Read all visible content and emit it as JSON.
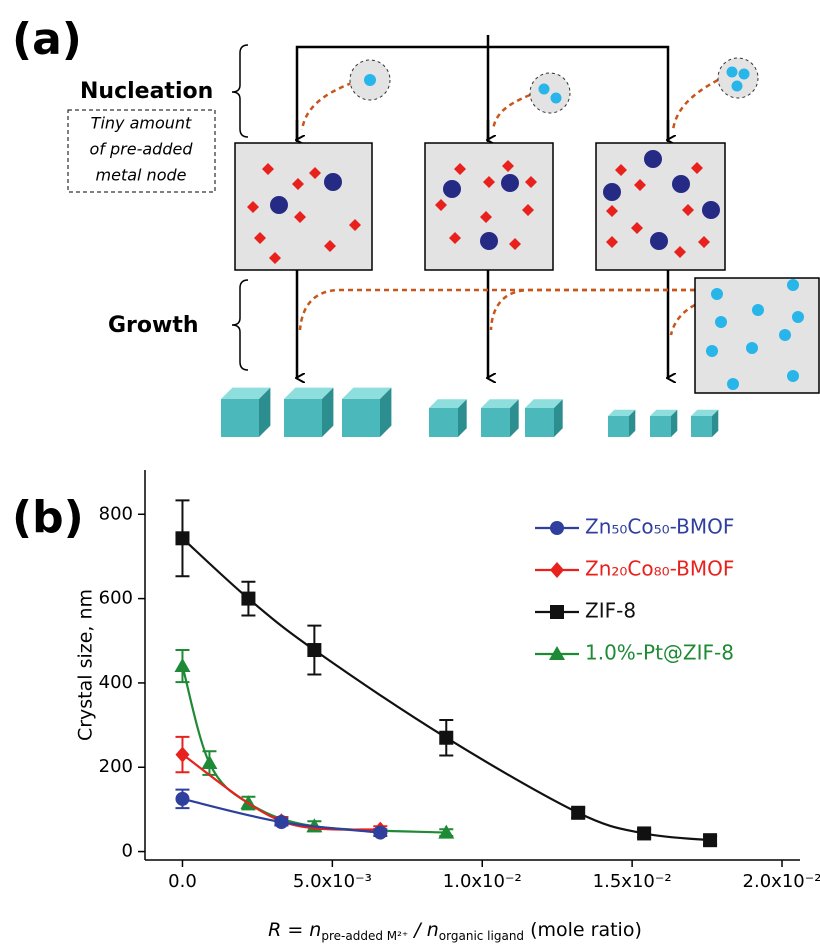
{
  "diagram": {
    "panel_label": "(a)",
    "stage_1": "Nucleation",
    "note": [
      "Tiny amount",
      "of pre-added",
      "metal node"
    ],
    "stage_2": "Growth"
  },
  "chart_data": {
    "type": "line",
    "panel_label": "(b)",
    "ylabel": "Crystal size, nm",
    "xlabel": [
      "R = n",
      "pre-added M²⁺",
      " / n",
      "organic ligand",
      " (mole ratio)"
    ],
    "xlim": [
      -0.00125,
      0.0206
    ],
    "ylim": [
      -20,
      905
    ],
    "xticks": [
      {
        "value": 0,
        "label": "0.0"
      },
      {
        "value": 0.005,
        "label": "5.0x10⁻³"
      },
      {
        "value": 0.01,
        "label": "1.0x10⁻²"
      },
      {
        "value": 0.015,
        "label": "1.5x10⁻²"
      },
      {
        "value": 0.02,
        "label": "2.0x10⁻²"
      }
    ],
    "yticks": [
      0,
      200,
      400,
      600,
      800
    ],
    "legend": "upper right",
    "series": [
      {
        "name": "Zn₅₀Co₅₀-BMOF",
        "color": "#2e3f9e",
        "marker": "circle",
        "x": [
          0,
          0.0033,
          0.0066
        ],
        "values": [
          125,
          70,
          45
        ],
        "errors": [
          22,
          8,
          8
        ]
      },
      {
        "name": "Zn₂₀Co₈₀-BMOF",
        "color": "#e8211d",
        "marker": "diamond",
        "x": [
          0,
          0.0033,
          0.0066
        ],
        "values": [
          230,
          72,
          52
        ],
        "errors": [
          42,
          10,
          8
        ]
      },
      {
        "name": "ZIF-8",
        "color": "#111111",
        "marker": "square",
        "x": [
          0,
          0.0022,
          0.0044,
          0.0088,
          0.0132,
          0.0154,
          0.0176
        ],
        "values": [
          743,
          600,
          478,
          270,
          92,
          43,
          27
        ],
        "errors": [
          90,
          40,
          58,
          42,
          12,
          10,
          10
        ]
      },
      {
        "name": "1.0%-Pt@ZIF-8",
        "color": "#1e8a35",
        "marker": "triangle",
        "x": [
          0,
          0.0009,
          0.0022,
          0.0044,
          0.0088
        ],
        "values": [
          440,
          210,
          115,
          60,
          45
        ],
        "errors": [
          38,
          28,
          15,
          12,
          8
        ]
      }
    ]
  }
}
